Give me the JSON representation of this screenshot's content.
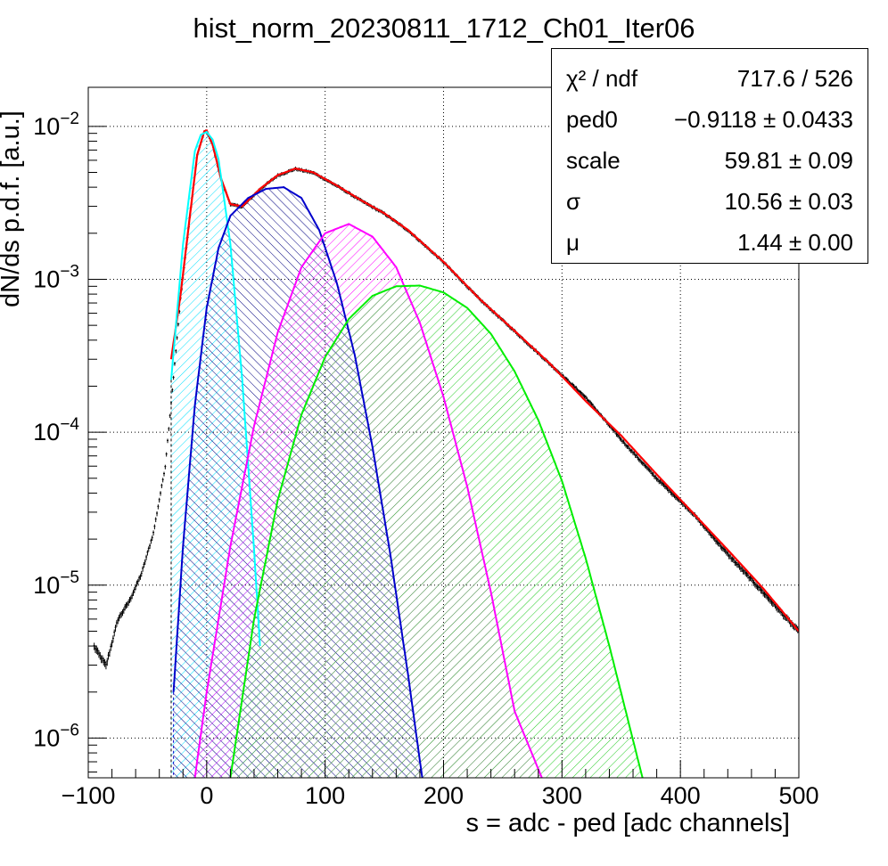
{
  "title": "hist_norm_20230811_1712_Ch01_Iter06",
  "xlabel": "s = adc - ped [adc channels]",
  "ylabel": "dN/ds p.d.f. [a.u.]",
  "stats": [
    {
      "label": "χ² / ndf",
      "value": "717.6 / 526"
    },
    {
      "label": "ped0",
      "value": "−0.9118 ± 0.0433"
    },
    {
      "label": "scale",
      "value": "59.81 ± 0.09"
    },
    {
      "label": "σ",
      "value": "10.56 ± 0.03"
    },
    {
      "label": "μ",
      "value": "1.44 ± 0.00"
    }
  ],
  "chart_data": {
    "type": "line",
    "title": "hist_norm_20230811_1712_Ch01_Iter06",
    "xlabel": "s = adc - ped [adc channels]",
    "ylabel": "dN/ds p.d.f. [a.u.]",
    "xlim": [
      -100,
      500
    ],
    "ylim": [
      5.5e-07,
      0.018
    ],
    "yscale": "log",
    "grid": true,
    "x_ticks": [
      "−100",
      "0",
      "100",
      "200",
      "300",
      "400",
      "500"
    ],
    "y_ticks": [
      {
        "base": "10",
        "exp": "−2",
        "value": 0.01
      },
      {
        "base": "10",
        "exp": "−3",
        "value": 0.001
      },
      {
        "base": "10",
        "exp": "−4",
        "value": 0.0001
      },
      {
        "base": "10",
        "exp": "−5",
        "value": 1e-05
      },
      {
        "base": "10",
        "exp": "−6",
        "value": 1e-06
      }
    ],
    "data_histogram": {
      "color": "#000000",
      "x": [
        -95,
        -85,
        -75,
        -65,
        -55,
        -45,
        -35,
        -28,
        -22,
        -15,
        -8,
        -2,
        0,
        5,
        12,
        20,
        30,
        45,
        60,
        75,
        90,
        110,
        130,
        150,
        170,
        200,
        230,
        260,
        290,
        320,
        350,
        380,
        410,
        440,
        470,
        500
      ],
      "y": [
        4e-06,
        3e-06,
        6e-06,
        8e-06,
        1.2e-05,
        2.2e-05,
        6e-05,
        0.00023,
        0.00075,
        0.0022,
        0.0065,
        0.0092,
        0.0093,
        0.0075,
        0.0045,
        0.0031,
        0.003,
        0.0039,
        0.0048,
        0.0053,
        0.005,
        0.0041,
        0.0033,
        0.0027,
        0.0021,
        0.0013,
        0.00075,
        0.00046,
        0.00028,
        0.00017,
        9e-05,
        5e-05,
        3e-05,
        1.6e-05,
        9e-06,
        5e-06
      ]
    },
    "series": [
      {
        "color": "#ff0000",
        "x": [
          -30,
          -22,
          -15,
          -8,
          -2,
          0,
          5,
          12,
          20,
          30,
          45,
          60,
          75,
          90,
          110,
          130,
          150,
          170,
          200,
          230,
          260,
          290,
          320,
          350,
          380,
          410,
          440,
          470,
          500
        ],
        "y": [
          0.0003,
          0.0008,
          0.0023,
          0.0065,
          0.0093,
          0.0094,
          0.0076,
          0.0046,
          0.0031,
          0.003,
          0.0039,
          0.0048,
          0.0053,
          0.005,
          0.0041,
          0.0033,
          0.0027,
          0.0021,
          0.0013,
          0.00075,
          0.00046,
          0.00028,
          0.00016,
          9.5e-05,
          5.3e-05,
          3e-05,
          1.7e-05,
          9.5e-06,
          5e-06
        ],
        "fill": false
      },
      {
        "color": "#00ffff",
        "x": [
          -30,
          -20,
          -10,
          -5,
          0,
          5,
          10,
          20,
          30,
          40,
          45
        ],
        "y": [
          0.00022,
          0.0017,
          0.0069,
          0.0088,
          0.0092,
          0.0082,
          0.0061,
          0.0017,
          0.00022,
          1.7e-05,
          4e-06
        ],
        "fill": true
      },
      {
        "color": "#0000cc",
        "x": [
          -28,
          -20,
          -10,
          0,
          10,
          20,
          35,
          50,
          65,
          80,
          95,
          110,
          125,
          140,
          155,
          170,
          182
        ],
        "y": [
          2e-06,
          1.8e-05,
          0.00015,
          0.00065,
          0.0016,
          0.0026,
          0.0034,
          0.0039,
          0.004,
          0.0034,
          0.0021,
          0.00094,
          0.00032,
          8e-05,
          1.6e-05,
          2.6e-06,
          5.5e-07
        ],
        "fill": true
      },
      {
        "color": "#ff00ff",
        "x": [
          -10,
          0,
          20,
          40,
          60,
          80,
          100,
          120,
          140,
          160,
          180,
          200,
          220,
          240,
          260,
          283
        ],
        "y": [
          5.5e-07,
          2e-06,
          1.8e-05,
          0.00011,
          0.00045,
          0.0012,
          0.002,
          0.0023,
          0.0019,
          0.0012,
          0.00052,
          0.00017,
          4.4e-05,
          9e-06,
          1.5e-06,
          5.5e-07
        ],
        "fill": true
      },
      {
        "color": "#00ee00",
        "x": [
          20,
          40,
          60,
          80,
          100,
          120,
          140,
          160,
          180,
          200,
          220,
          240,
          260,
          280,
          300,
          320,
          340,
          368
        ],
        "y": [
          5.5e-07,
          6e-06,
          3.6e-05,
          0.00013,
          0.00031,
          0.00055,
          0.00078,
          0.0009,
          0.00091,
          0.00082,
          0.00065,
          0.00044,
          0.00025,
          0.00012,
          4.8e-05,
          1.5e-05,
          4e-06,
          5.5e-07
        ],
        "fill": true
      }
    ]
  }
}
